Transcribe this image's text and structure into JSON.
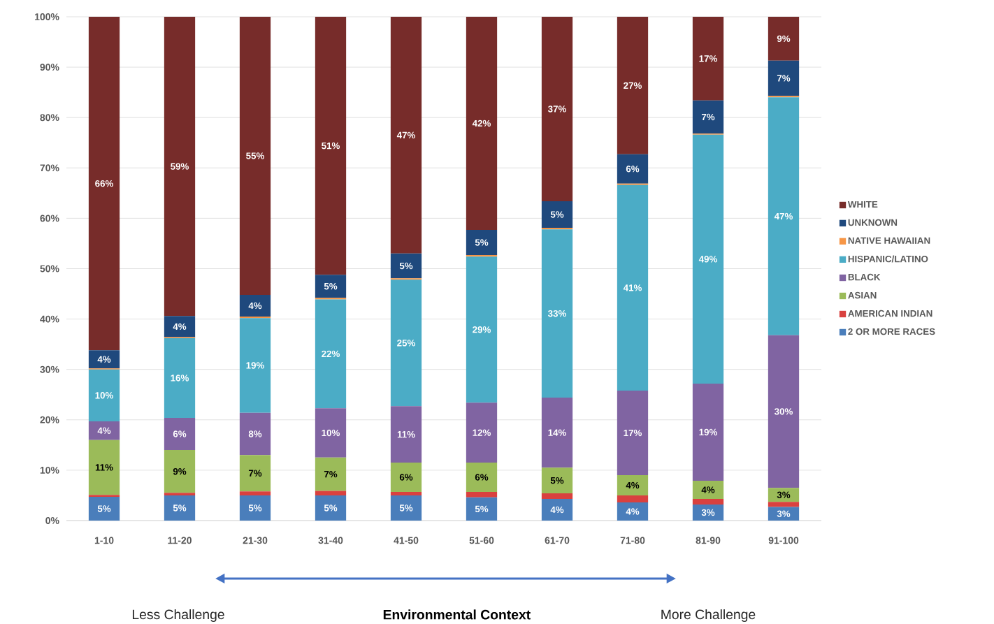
{
  "chart_data": {
    "type": "bar",
    "stacked": true,
    "xlabel": "Environmental Context",
    "annotations": [
      "Less Challenge",
      "More Challenge"
    ],
    "categories": [
      "1-10",
      "11-20",
      "21-30",
      "31-40",
      "41-50",
      "51-60",
      "61-70",
      "71-80",
      "81-90",
      "91-100"
    ],
    "ylim": [
      0,
      100
    ],
    "yticks": [
      {
        "value": 0,
        "label": "0%"
      },
      {
        "value": 10,
        "label": "10%"
      },
      {
        "value": 20,
        "label": "20%"
      },
      {
        "value": 30,
        "label": "30%"
      },
      {
        "value": 40,
        "label": "40%"
      },
      {
        "value": 50,
        "label": "50%"
      },
      {
        "value": 60,
        "label": "60%"
      },
      {
        "value": 70,
        "label": "70%"
      },
      {
        "value": 80,
        "label": "80%"
      },
      {
        "value": 90,
        "label": "90%"
      },
      {
        "value": 100,
        "label": "100%"
      }
    ],
    "grid": "y",
    "legend": "right",
    "series": [
      {
        "name": "2 OR MORE RACES",
        "color": "#4a7ebb",
        "values": [
          4.7,
          5.0,
          5.0,
          5.0,
          5.0,
          4.6,
          4.3,
          3.6,
          3.2,
          2.7
        ],
        "value_labels": [
          "5%",
          "5%",
          "5%",
          "5%",
          "5%",
          "5%",
          "4%",
          "4%",
          "3%",
          "3%"
        ]
      },
      {
        "name": "AMERICAN INDIAN",
        "color": "#d9413f",
        "values": [
          0.4,
          0.5,
          0.8,
          0.9,
          0.7,
          1.1,
          1.1,
          1.4,
          1.1,
          1.0
        ]
      },
      {
        "name": "ASIAN",
        "color": "#9bbb59",
        "values": [
          10.9,
          8.5,
          7.2,
          6.6,
          5.8,
          5.8,
          5.1,
          4.0,
          3.6,
          2.8
        ],
        "value_labels": [
          "11%",
          "9%",
          "7%",
          "7%",
          "6%",
          "6%",
          "5%",
          "4%",
          "4%",
          "3%"
        ]
      },
      {
        "name": "BLACK",
        "color": "#8064a2",
        "values": [
          3.7,
          6.4,
          8.4,
          9.8,
          11.2,
          11.9,
          13.9,
          16.8,
          19.3,
          30.3
        ],
        "value_labels": [
          "4%",
          "6%",
          "8%",
          "10%",
          "11%",
          "12%",
          "14%",
          "17%",
          "19%",
          "30%"
        ]
      },
      {
        "name": "HISPANIC/LATINO",
        "color": "#4bacc6",
        "values": [
          10.3,
          15.8,
          18.8,
          21.6,
          25.1,
          29.0,
          33.4,
          40.8,
          49.4,
          47.2
        ],
        "value_labels": [
          "10%",
          "16%",
          "19%",
          "22%",
          "25%",
          "29%",
          "33%",
          "41%",
          "49%",
          "47%"
        ]
      },
      {
        "name": "NATIVE HAWAIIAN",
        "color": "#f79646",
        "values": [
          0.2,
          0.2,
          0.3,
          0.3,
          0.3,
          0.3,
          0.3,
          0.3,
          0.2,
          0.3
        ]
      },
      {
        "name": "UNKNOWN",
        "color": "#1f497d",
        "values": [
          3.6,
          4.2,
          4.3,
          4.6,
          4.9,
          5.0,
          5.3,
          5.8,
          6.6,
          7.0
        ],
        "value_labels": [
          "4%",
          "4%",
          "4%",
          "5%",
          "5%",
          "5%",
          "5%",
          "6%",
          "7%",
          "7%"
        ]
      },
      {
        "name": "WHITE",
        "color": "#772c2a",
        "values": [
          66.2,
          59.4,
          55.2,
          51.2,
          47.0,
          42.3,
          36.6,
          27.3,
          16.6,
          8.7
        ],
        "value_labels": [
          "66%",
          "59%",
          "55%",
          "51%",
          "47%",
          "42%",
          "37%",
          "27%",
          "17%",
          "9%"
        ]
      }
    ]
  }
}
